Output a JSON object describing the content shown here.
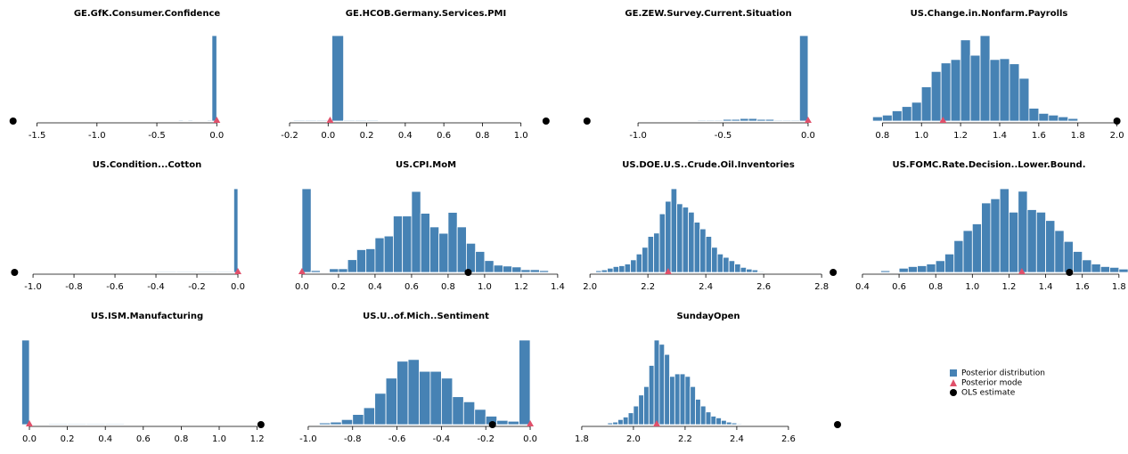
{
  "chart_data": [
    {
      "type": "histogram",
      "title": "GE.GfK.Consumer.Confidence",
      "color": "#4682b4",
      "bins": [
        -0.32,
        -0.28,
        -0.24,
        -0.2,
        -0.16,
        -0.12,
        -0.08,
        -0.04,
        0.0
      ],
      "values": [
        1,
        0,
        1,
        0,
        0,
        0,
        1,
        100
      ],
      "posterior_mode": 0.0,
      "ols_estimate": -1.7,
      "xlim": [
        -1.72,
        0.05
      ],
      "xticks": [
        -1.5,
        {
          "value": -1,
          "label": "-1.0"
        },
        -0.5,
        {
          "value": 0,
          "label": "0.0"
        }
      ]
    },
    {
      "type": "histogram",
      "title": "GE.HCOB.Germany.Services.PMI",
      "color": "#4682b4",
      "bins": [
        -0.18,
        -0.12,
        -0.06,
        0.0,
        0.02,
        0.08,
        0.14,
        0.2,
        0.26
      ],
      "values": [
        1,
        1,
        1,
        0,
        100,
        1,
        1,
        1
      ],
      "posterior_mode": 0.01,
      "ols_estimate": 1.13,
      "xlim": [
        -0.2,
        1.14
      ],
      "xticks": [
        -0.2,
        {
          "value": 0,
          "label": "0.0"
        },
        0.2,
        0.4,
        0.6,
        0.8,
        {
          "value": 1,
          "label": "1.0"
        }
      ]
    },
    {
      "type": "histogram",
      "title": "GE.ZEW.Survey.Current.Situation",
      "color": "#4682b4",
      "bins": [
        -0.7,
        -0.65,
        -0.6,
        -0.55,
        -0.5,
        -0.45,
        -0.4,
        -0.35,
        -0.3,
        -0.25,
        -0.2,
        -0.15,
        -0.1,
        -0.05,
        0.0
      ],
      "values": [
        0,
        1,
        1,
        1,
        2,
        2,
        3,
        3,
        2,
        2,
        1,
        1,
        1,
        100
      ],
      "posterior_mode": 0.0,
      "ols_estimate": -1.3,
      "xlim": [
        -1.32,
        0.016
      ],
      "xticks": [
        {
          "value": -1,
          "label": "-1.0"
        },
        -0.5,
        {
          "value": 0,
          "label": "0.0"
        }
      ]
    },
    {
      "type": "histogram",
      "title": "US.Change.in.Nonfarm.Payrolls",
      "color": "#4682b4",
      "bins": [
        0.75,
        0.8,
        0.85,
        0.9,
        0.95,
        1.0,
        1.05,
        1.1,
        1.15,
        1.2,
        1.25,
        1.3,
        1.35,
        1.4,
        1.45,
        1.5,
        1.55,
        1.6,
        1.65,
        1.7,
        1.75,
        1.8,
        1.85
      ],
      "values": [
        5,
        7,
        12,
        17,
        22,
        40,
        58,
        68,
        72,
        95,
        77,
        100,
        72,
        73,
        67,
        50,
        15,
        9,
        7,
        5,
        3,
        0
      ],
      "posterior_mode": 1.11,
      "ols_estimate": 2.0,
      "xlim": [
        0.73,
        2.02
      ],
      "xticks": [
        0.8,
        {
          "value": 1,
          "label": "1.0"
        },
        1.2,
        1.4,
        1.6,
        1.8,
        {
          "value": 2,
          "label": "2.0"
        }
      ]
    },
    {
      "type": "histogram",
      "title": "US.Condition...Cotton",
      "color": "#4682b4",
      "bins": [
        -0.4,
        -0.3,
        -0.2,
        -0.1,
        -0.02,
        0.0
      ],
      "values": [
        1,
        1,
        1,
        1,
        100
      ],
      "posterior_mode": 0.0,
      "ols_estimate": -1.09,
      "xlim": [
        -1.109,
        0.013
      ],
      "xticks": [
        {
          "value": -1,
          "label": "-1.0"
        },
        -0.8,
        -0.6,
        -0.4,
        -0.2,
        {
          "value": 0,
          "label": "0.0"
        }
      ]
    },
    {
      "type": "histogram",
      "title": "US.CPI.MoM",
      "color": "#4682b4",
      "bins": [
        0.0,
        0.05,
        0.1,
        0.15,
        0.2,
        0.25,
        0.3,
        0.35,
        0.4,
        0.45,
        0.5,
        0.55,
        0.6,
        0.65,
        0.7,
        0.75,
        0.8,
        0.85,
        0.9,
        0.95,
        1.0,
        1.05,
        1.1,
        1.15,
        1.2,
        1.25,
        1.3,
        1.35
      ],
      "values": [
        92,
        2,
        0,
        4,
        4,
        14,
        25,
        26,
        38,
        40,
        62,
        62,
        89,
        65,
        50,
        43,
        66,
        50,
        32,
        23,
        13,
        8,
        7,
        6,
        3,
        3,
        2
      ],
      "posterior_mode": 0.0,
      "ols_estimate": 0.91,
      "xlim": [
        -0.068,
        1.42
      ],
      "xticks": [
        {
          "value": 0,
          "label": "0.0"
        },
        0.2,
        0.4,
        0.6,
        0.8,
        {
          "value": 1,
          "label": "1.0"
        },
        1.2,
        1.4
      ]
    },
    {
      "type": "histogram",
      "title": "US.DOE.U.S..Crude.Oil.Inventories",
      "color": "#4682b4",
      "bins": [
        2.02,
        2.04,
        2.06,
        2.08,
        2.1,
        2.12,
        2.14,
        2.16,
        2.18,
        2.2,
        2.22,
        2.24,
        2.26,
        2.28,
        2.3,
        2.32,
        2.34,
        2.36,
        2.38,
        2.4,
        2.42,
        2.44,
        2.46,
        2.48,
        2.5,
        2.52,
        2.54,
        2.56,
        2.58,
        2.6
      ],
      "values": [
        2,
        3,
        5,
        7,
        8,
        10,
        15,
        22,
        30,
        43,
        47,
        70,
        85,
        100,
        82,
        78,
        72,
        60,
        52,
        43,
        30,
        22,
        18,
        14,
        10,
        6,
        4,
        3,
        1
      ],
      "posterior_mode": 2.27,
      "ols_estimate": 2.84,
      "xlim": [
        1.978,
        2.855
      ],
      "xticks": [
        {
          "value": 2,
          "label": "2.0"
        },
        2.2,
        2.4,
        2.6,
        2.8
      ]
    },
    {
      "type": "histogram",
      "title": "US.FOMC.Rate.Decision..Lower.Bound.",
      "color": "#4682b4",
      "bins": [
        0.5,
        0.55,
        0.6,
        0.65,
        0.7,
        0.75,
        0.8,
        0.85,
        0.9,
        0.95,
        1.0,
        1.05,
        1.1,
        1.15,
        1.2,
        1.25,
        1.3,
        1.35,
        1.4,
        1.45,
        1.5,
        1.55,
        1.6,
        1.65,
        1.7,
        1.75,
        1.8,
        1.85
      ],
      "values": [
        2,
        0,
        5,
        7,
        8,
        10,
        14,
        22,
        38,
        50,
        58,
        83,
        88,
        100,
        72,
        97,
        75,
        72,
        62,
        50,
        37,
        25,
        15,
        10,
        7,
        6,
        4
      ],
      "posterior_mode": 1.27,
      "ols_estimate": 1.53,
      "xlim": [
        0.376,
        1.83
      ],
      "xticks": [
        0.4,
        0.6,
        0.8,
        {
          "value": 1,
          "label": "1.0"
        },
        1.2,
        1.4,
        1.6,
        1.8
      ]
    },
    {
      "type": "histogram",
      "title": "US.ISM.Manufacturing",
      "color": "#4682b4",
      "bins": [
        -0.04,
        0.0,
        0.1,
        0.2,
        0.3,
        0.4,
        0.5
      ],
      "values": [
        100,
        0,
        1,
        1,
        1,
        1
      ],
      "posterior_mode": 0.0,
      "ols_estimate": 1.22,
      "xlim": [
        -0.061,
        1.23
      ],
      "xticks": [
        {
          "value": 0,
          "label": "0.0"
        },
        0.2,
        0.4,
        0.6,
        0.8,
        {
          "value": 1,
          "label": "1.0"
        },
        1.2
      ]
    },
    {
      "type": "histogram",
      "title": "US.U..of.Mich..Sentiment",
      "color": "#4682b4",
      "bins": [
        -0.95,
        -0.9,
        -0.85,
        -0.8,
        -0.75,
        -0.7,
        -0.65,
        -0.6,
        -0.55,
        -0.5,
        -0.45,
        -0.4,
        -0.35,
        -0.3,
        -0.25,
        -0.2,
        -0.15,
        -0.1,
        -0.05,
        0.0
      ],
      "values": [
        2,
        3,
        6,
        12,
        20,
        37,
        55,
        75,
        77,
        63,
        63,
        55,
        33,
        27,
        18,
        10,
        5,
        4,
        100
      ],
      "posterior_mode": 0.0,
      "ols_estimate": -0.17,
      "xlim": [
        -1.084,
        0.04
      ],
      "xticks": [
        {
          "value": -1,
          "label": "-1.0"
        },
        -0.8,
        -0.6,
        -0.4,
        -0.2,
        {
          "value": 0,
          "label": "0.0"
        }
      ]
    },
    {
      "type": "histogram",
      "title": "SundayOpen",
      "color": "#4682b4",
      "bins": [
        1.9,
        1.92,
        1.94,
        1.96,
        1.98,
        2.0,
        2.02,
        2.04,
        2.06,
        2.08,
        2.1,
        2.12,
        2.14,
        2.16,
        2.18,
        2.2,
        2.22,
        2.24,
        2.26,
        2.28,
        2.3,
        2.32,
        2.34,
        2.36,
        2.38,
        2.4,
        2.42
      ],
      "values": [
        2,
        3,
        6,
        9,
        14,
        22,
        35,
        45,
        70,
        100,
        95,
        83,
        57,
        60,
        60,
        57,
        45,
        30,
        22,
        15,
        10,
        8,
        5,
        3,
        2,
        1
      ],
      "posterior_mode": 2.09,
      "ols_estimate": 2.79,
      "xlim": [
        1.783,
        2.79
      ],
      "xticks": [
        1.8,
        {
          "value": 2,
          "label": "2.0"
        },
        2.2,
        2.4,
        2.6
      ]
    }
  ],
  "legend": {
    "items": [
      {
        "name": "Posterior distribution",
        "color": "#4682b4"
      },
      {
        "name": "Posterior mode",
        "color": "#e0506a"
      },
      {
        "name": "OLS estimate",
        "color": "#000000"
      }
    ]
  }
}
